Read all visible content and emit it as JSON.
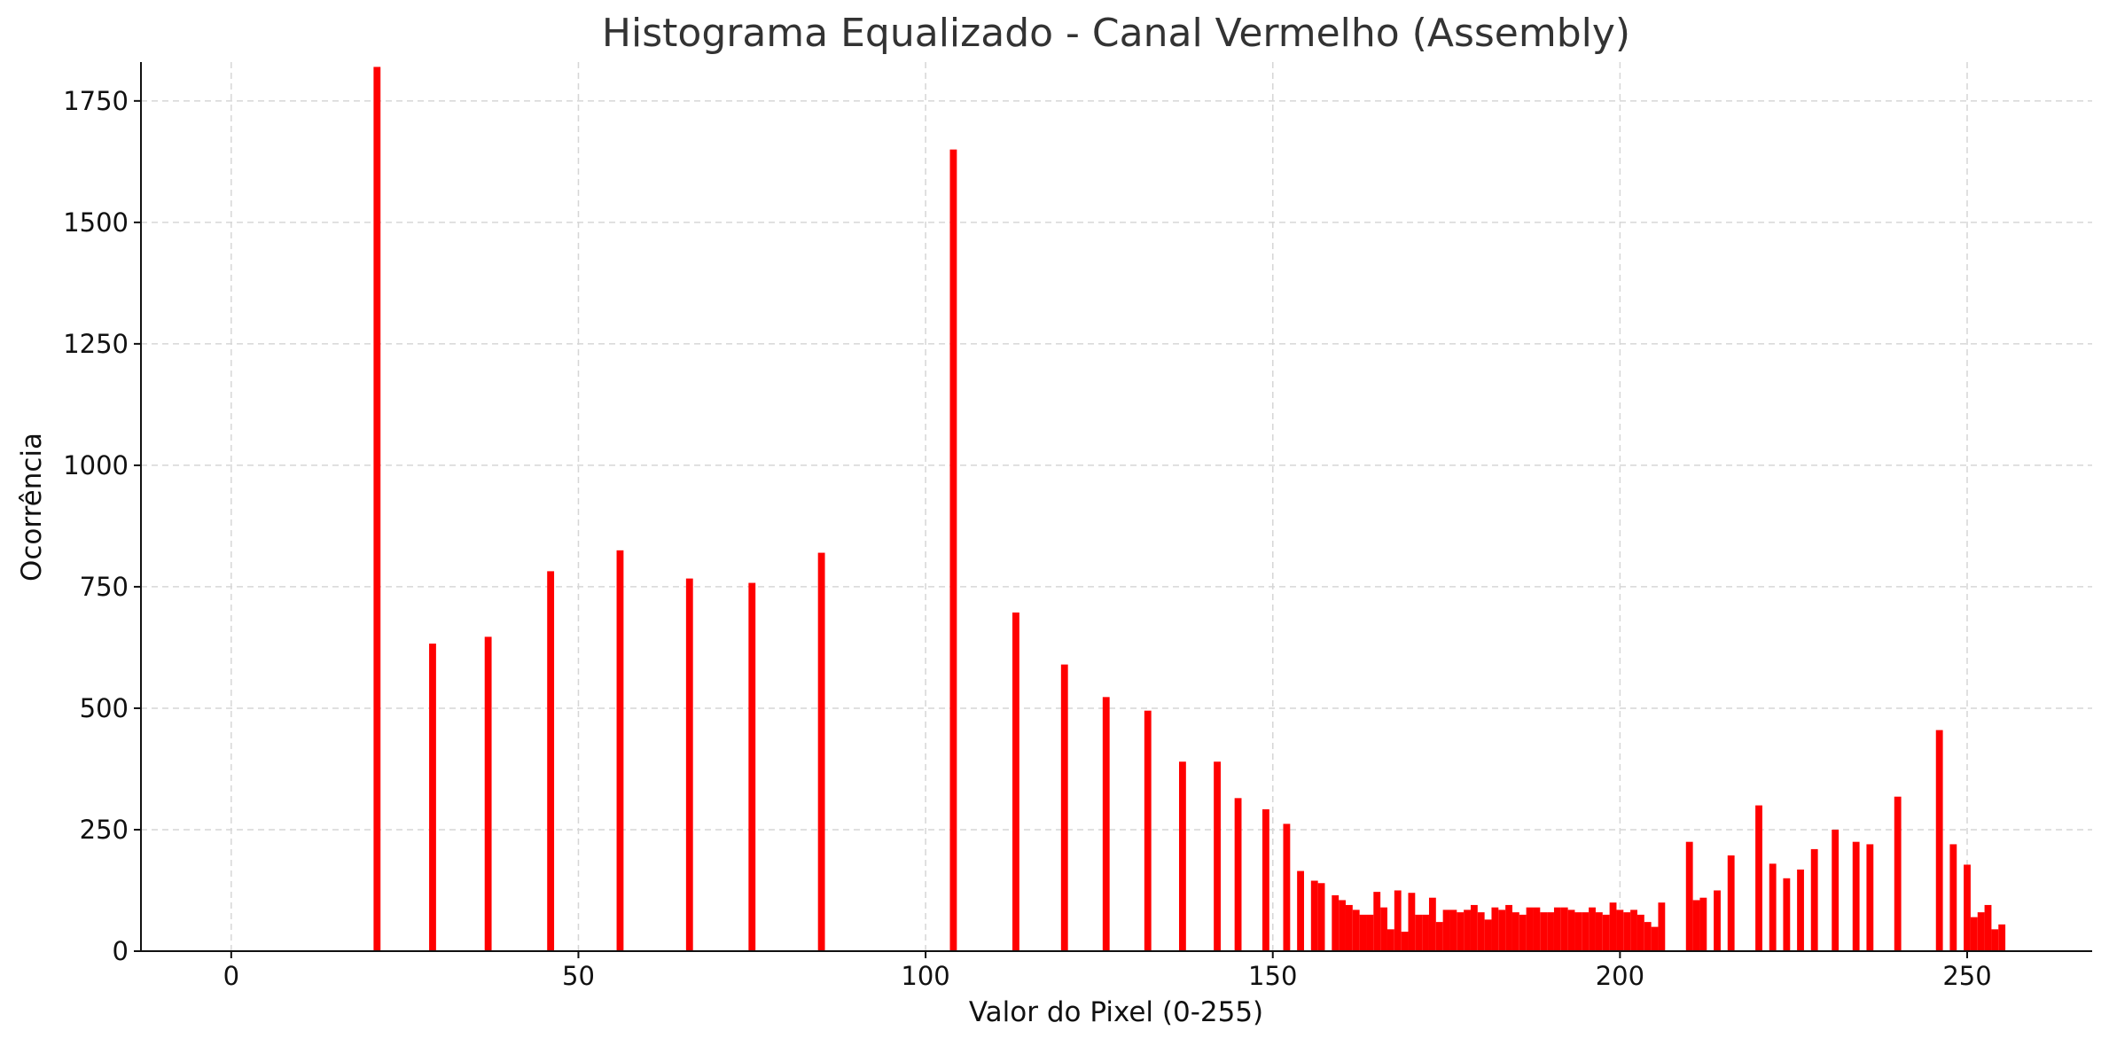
{
  "chart_data": {
    "type": "bar",
    "title": "Histograma Equalizado - Canal Vermelho (Assembly)",
    "xlabel": "Valor do Pixel (0-255)",
    "ylabel": "Ocorrência",
    "xlim": [
      -13,
      268
    ],
    "ylim": [
      0,
      1830
    ],
    "xticks": [
      0,
      50,
      100,
      150,
      200,
      250
    ],
    "yticks": [
      0,
      250,
      500,
      750,
      1000,
      1250,
      1500,
      1750
    ],
    "grid": true,
    "bar_color": "#ff0000",
    "bar_width": 1,
    "series": [
      {
        "x": [
          21,
          29,
          37,
          46,
          56,
          66,
          75,
          85,
          104,
          113,
          120,
          126,
          132,
          137,
          142,
          145,
          149,
          152,
          154,
          156,
          157,
          159,
          160,
          161,
          162,
          163,
          164,
          165,
          166,
          167,
          168,
          169,
          170,
          171,
          172,
          173,
          174,
          175,
          176,
          177,
          178,
          179,
          180,
          181,
          182,
          183,
          184,
          185,
          186,
          187,
          188,
          189,
          190,
          191,
          192,
          193,
          194,
          195,
          196,
          197,
          198,
          199,
          200,
          201,
          202,
          203,
          204,
          205,
          206,
          207,
          210,
          211,
          212,
          214,
          216,
          220,
          222,
          224,
          226,
          228,
          231,
          234,
          236,
          240,
          246,
          248,
          250,
          251,
          252,
          253,
          254,
          255
        ],
        "values": [
          1820,
          633,
          647,
          782,
          825,
          767,
          758,
          820,
          1650,
          697,
          590,
          523,
          495,
          390,
          390,
          315,
          292,
          262,
          165,
          145,
          140,
          115,
          105,
          95,
          85,
          75,
          75,
          122,
          90,
          45,
          125,
          40,
          120,
          75,
          75,
          110,
          60,
          85,
          85,
          80,
          85,
          95,
          80,
          65,
          90,
          85,
          95,
          80,
          75,
          90,
          90,
          80,
          80,
          90,
          90,
          85,
          80,
          80,
          90,
          80,
          75,
          100,
          85,
          80,
          85,
          75,
          60,
          50,
          100,
          0,
          225,
          105,
          110,
          125,
          197,
          300,
          180,
          150,
          168,
          210,
          250,
          225,
          220,
          318,
          455,
          220,
          178,
          70,
          80,
          95,
          45,
          55
        ]
      }
    ]
  }
}
